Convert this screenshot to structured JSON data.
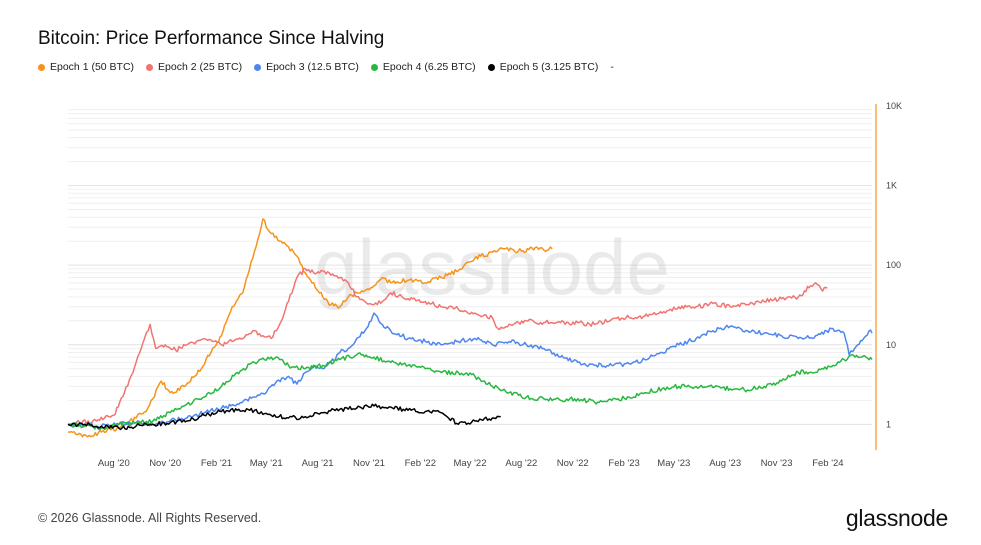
{
  "title": "Bitcoin: Price Performance Since Halving",
  "legend": [
    {
      "label": "Epoch 1 (50 BTC)",
      "color": "#f7931a"
    },
    {
      "label": "Epoch 2 (25 BTC)",
      "color": "#f07472"
    },
    {
      "label": "Epoch 3 (12.5 BTC)",
      "color": "#4e86f0"
    },
    {
      "label": "Epoch 4 (6.25 BTC)",
      "color": "#27b840"
    },
    {
      "label": "Epoch 5 (3.125 BTC)",
      "color": "#000000"
    },
    {
      "label": "-",
      "color": ""
    }
  ],
  "footer": "© 2026 Glassnode. All Rights Reserved.",
  "brand": "glassnode",
  "watermark": "glassnode",
  "chart_data": {
    "type": "line",
    "title": "Bitcoin: Price Performance Since Halving",
    "y_scale": "log",
    "ylim": [
      0.6,
      10000
    ],
    "y_ticks": [
      1,
      10,
      100,
      1000,
      10000
    ],
    "y_tick_labels": [
      "1",
      "10",
      "100",
      "1K",
      "10K"
    ],
    "x_ticks": [
      "Aug '20",
      "Nov '20",
      "Feb '21",
      "May '21",
      "Aug '21",
      "Nov '21",
      "Feb '22",
      "May '22",
      "Aug '22",
      "Nov '22",
      "Feb '23",
      "May '23",
      "Aug '23",
      "Nov '23",
      "Feb '24"
    ],
    "xlim": [
      "2020-05-11",
      "2024-04-20"
    ],
    "grid": true,
    "legend_position": "top-left",
    "series": [
      {
        "name": "Epoch 1 (50 BTC)",
        "color": "#f7931a",
        "points": [
          [
            "2020-05-11",
            0.8
          ],
          [
            "2020-05-25",
            0.75
          ],
          [
            "2020-06-15",
            0.7
          ],
          [
            "2020-07-10",
            0.8
          ],
          [
            "2020-08-10",
            0.9
          ],
          [
            "2020-09-10",
            1.2
          ],
          [
            "2020-10-01",
            1.6
          ],
          [
            "2020-10-25",
            3.5
          ],
          [
            "2020-11-10",
            2.5
          ],
          [
            "2020-12-05",
            3.0
          ],
          [
            "2021-01-05",
            5.0
          ],
          [
            "2021-01-25",
            9.0
          ],
          [
            "2021-02-10",
            13
          ],
          [
            "2021-03-01",
            30
          ],
          [
            "2021-03-20",
            45
          ],
          [
            "2021-04-10",
            150
          ],
          [
            "2021-04-25",
            380
          ],
          [
            "2021-05-10",
            250
          ],
          [
            "2021-05-25",
            200
          ],
          [
            "2021-06-10",
            170
          ],
          [
            "2021-06-25",
            130
          ],
          [
            "2021-07-10",
            80
          ],
          [
            "2021-07-25",
            60
          ],
          [
            "2021-08-10",
            40
          ],
          [
            "2021-08-25",
            32
          ],
          [
            "2021-09-10",
            30
          ],
          [
            "2021-09-25",
            40
          ],
          [
            "2021-10-10",
            45
          ],
          [
            "2021-10-25",
            48
          ],
          [
            "2021-11-10",
            55
          ],
          [
            "2021-11-25",
            70
          ],
          [
            "2021-12-10",
            60
          ],
          [
            "2022-01-10",
            65
          ],
          [
            "2022-02-10",
            60
          ],
          [
            "2022-03-10",
            70
          ],
          [
            "2022-04-10",
            85
          ],
          [
            "2022-05-01",
            110
          ],
          [
            "2022-05-20",
            130
          ],
          [
            "2022-06-10",
            145
          ],
          [
            "2022-07-01",
            160
          ],
          [
            "2022-08-01",
            150
          ],
          [
            "2022-08-20",
            165
          ],
          [
            "2022-09-10",
            155
          ],
          [
            "2022-09-25",
            160
          ]
        ]
      },
      {
        "name": "Epoch 2 (25 BTC)",
        "color": "#f07472",
        "points": [
          [
            "2020-05-11",
            1.0
          ],
          [
            "2020-06-01",
            1.05
          ],
          [
            "2020-07-01",
            1.1
          ],
          [
            "2020-08-01",
            1.3
          ],
          [
            "2020-08-20",
            2.5
          ],
          [
            "2020-09-10",
            6.0
          ],
          [
            "2020-09-25",
            12
          ],
          [
            "2020-10-05",
            18
          ],
          [
            "2020-10-15",
            9
          ],
          [
            "2020-11-01",
            10
          ],
          [
            "2020-11-20",
            8.5
          ],
          [
            "2020-12-10",
            10
          ],
          [
            "2021-01-10",
            12
          ],
          [
            "2021-01-25",
            11
          ],
          [
            "2021-02-10",
            10
          ],
          [
            "2021-03-01",
            11
          ],
          [
            "2021-03-20",
            12
          ],
          [
            "2021-04-10",
            15
          ],
          [
            "2021-04-25",
            13
          ],
          [
            "2021-05-10",
            12
          ],
          [
            "2021-05-25",
            18
          ],
          [
            "2021-06-10",
            35
          ],
          [
            "2021-06-25",
            70
          ],
          [
            "2021-07-10",
            90
          ],
          [
            "2021-07-25",
            80
          ],
          [
            "2021-08-10",
            85
          ],
          [
            "2021-08-25",
            75
          ],
          [
            "2021-09-10",
            70
          ],
          [
            "2021-09-25",
            60
          ],
          [
            "2021-10-10",
            40
          ],
          [
            "2021-10-25",
            35
          ],
          [
            "2021-11-10",
            32
          ],
          [
            "2021-11-25",
            35
          ],
          [
            "2021-12-10",
            45
          ],
          [
            "2022-01-10",
            38
          ],
          [
            "2022-02-10",
            35
          ],
          [
            "2022-03-10",
            30
          ],
          [
            "2022-04-10",
            28
          ],
          [
            "2022-05-10",
            25
          ],
          [
            "2022-06-10",
            22
          ],
          [
            "2022-06-20",
            16
          ],
          [
            "2022-07-10",
            18
          ],
          [
            "2022-08-10",
            20
          ],
          [
            "2022-09-10",
            19
          ],
          [
            "2022-10-10",
            19
          ],
          [
            "2022-11-10",
            19
          ],
          [
            "2022-12-10",
            18
          ],
          [
            "2023-01-10",
            21
          ],
          [
            "2023-02-10",
            22
          ],
          [
            "2023-03-10",
            23
          ],
          [
            "2023-04-10",
            25
          ],
          [
            "2023-05-10",
            30
          ],
          [
            "2023-06-10",
            30
          ],
          [
            "2023-07-10",
            33
          ],
          [
            "2023-08-10",
            30
          ],
          [
            "2023-09-10",
            32
          ],
          [
            "2023-10-10",
            35
          ],
          [
            "2023-11-10",
            38
          ],
          [
            "2023-12-10",
            40
          ],
          [
            "2024-01-01",
            55
          ],
          [
            "2024-01-10",
            60
          ],
          [
            "2024-01-20",
            50
          ],
          [
            "2024-01-31",
            52
          ]
        ]
      },
      {
        "name": "Epoch 3 (12.5 BTC)",
        "color": "#4e86f0",
        "points": [
          [
            "2020-05-11",
            1.0
          ],
          [
            "2020-06-10",
            1.0
          ],
          [
            "2020-07-10",
            0.95
          ],
          [
            "2020-08-10",
            1.0
          ],
          [
            "2020-09-10",
            1.05
          ],
          [
            "2020-10-10",
            1.0
          ],
          [
            "2020-11-10",
            1.1
          ],
          [
            "2020-12-10",
            1.2
          ],
          [
            "2021-01-10",
            1.4
          ],
          [
            "2021-02-10",
            1.6
          ],
          [
            "2021-03-10",
            1.8
          ],
          [
            "2021-04-10",
            2.2
          ],
          [
            "2021-05-01",
            2.5
          ],
          [
            "2021-05-20",
            3.5
          ],
          [
            "2021-06-10",
            4.0
          ],
          [
            "2021-06-25",
            3.2
          ],
          [
            "2021-07-10",
            4.5
          ],
          [
            "2021-07-25",
            5.5
          ],
          [
            "2021-08-10",
            5.0
          ],
          [
            "2021-08-25",
            6.0
          ],
          [
            "2021-09-10",
            8.0
          ],
          [
            "2021-09-25",
            9.0
          ],
          [
            "2021-10-10",
            12
          ],
          [
            "2021-10-25",
            15
          ],
          [
            "2021-11-10",
            25
          ],
          [
            "2021-11-25",
            18
          ],
          [
            "2021-12-10",
            15
          ],
          [
            "2022-01-10",
            12
          ],
          [
            "2022-02-10",
            11
          ],
          [
            "2022-03-10",
            10
          ],
          [
            "2022-04-10",
            11
          ],
          [
            "2022-05-10",
            12
          ],
          [
            "2022-06-10",
            10
          ],
          [
            "2022-07-10",
            11
          ],
          [
            "2022-08-10",
            10
          ],
          [
            "2022-09-10",
            9
          ],
          [
            "2022-10-10",
            7
          ],
          [
            "2022-11-10",
            6
          ],
          [
            "2022-12-10",
            5.5
          ],
          [
            "2023-01-10",
            5.5
          ],
          [
            "2023-02-10",
            5.8
          ],
          [
            "2023-03-10",
            6.5
          ],
          [
            "2023-04-10",
            8
          ],
          [
            "2023-05-10",
            10
          ],
          [
            "2023-06-10",
            12
          ],
          [
            "2023-07-10",
            15
          ],
          [
            "2023-08-10",
            17
          ],
          [
            "2023-09-10",
            15
          ],
          [
            "2023-10-10",
            14
          ],
          [
            "2023-11-10",
            13
          ],
          [
            "2023-12-10",
            12
          ],
          [
            "2024-01-10",
            13
          ],
          [
            "2024-02-10",
            16
          ],
          [
            "2024-03-01",
            14
          ],
          [
            "2024-03-10",
            7.5
          ],
          [
            "2024-03-20",
            9
          ],
          [
            "2024-04-05",
            12
          ],
          [
            "2024-04-15",
            15
          ],
          [
            "2024-04-20",
            14
          ]
        ]
      },
      {
        "name": "Epoch 4 (6.25 BTC)",
        "color": "#27b840",
        "points": [
          [
            "2020-05-11",
            1.0
          ],
          [
            "2020-06-10",
            0.95
          ],
          [
            "2020-07-10",
            0.9
          ],
          [
            "2020-08-10",
            1.0
          ],
          [
            "2020-09-10",
            1.05
          ],
          [
            "2020-10-10",
            1.1
          ],
          [
            "2020-11-10",
            1.4
          ],
          [
            "2020-12-10",
            1.8
          ],
          [
            "2021-01-10",
            2.2
          ],
          [
            "2021-02-10",
            3.0
          ],
          [
            "2021-03-10",
            4.5
          ],
          [
            "2021-04-10",
            6.0
          ],
          [
            "2021-05-10",
            7.0
          ],
          [
            "2021-05-25",
            6.5
          ],
          [
            "2021-06-10",
            5.5
          ],
          [
            "2021-07-10",
            5.0
          ],
          [
            "2021-08-10",
            5.5
          ],
          [
            "2021-09-10",
            6.5
          ],
          [
            "2021-10-10",
            7.5
          ],
          [
            "2021-11-10",
            7.0
          ],
          [
            "2021-12-10",
            6.0
          ],
          [
            "2022-01-10",
            5.5
          ],
          [
            "2022-02-10",
            5.0
          ],
          [
            "2022-03-10",
            4.5
          ],
          [
            "2022-04-10",
            4.5
          ],
          [
            "2022-05-10",
            4.0
          ],
          [
            "2022-06-10",
            3.0
          ],
          [
            "2022-07-10",
            2.5
          ],
          [
            "2022-08-10",
            2.2
          ],
          [
            "2022-09-10",
            2.1
          ],
          [
            "2022-10-10",
            2.0
          ],
          [
            "2022-11-10",
            2.1
          ],
          [
            "2022-12-10",
            1.9
          ],
          [
            "2023-01-10",
            2.0
          ],
          [
            "2023-02-10",
            2.2
          ],
          [
            "2023-03-10",
            2.5
          ],
          [
            "2023-04-10",
            2.8
          ],
          [
            "2023-05-10",
            3.0
          ],
          [
            "2023-06-10",
            3.0
          ],
          [
            "2023-07-10",
            2.9
          ],
          [
            "2023-08-10",
            2.8
          ],
          [
            "2023-09-10",
            2.7
          ],
          [
            "2023-10-10",
            3.0
          ],
          [
            "2023-11-10",
            3.5
          ],
          [
            "2023-12-10",
            4.5
          ],
          [
            "2024-01-10",
            4.5
          ],
          [
            "2024-02-10",
            5.5
          ],
          [
            "2024-03-01",
            6.5
          ],
          [
            "2024-03-15",
            7.5
          ],
          [
            "2024-04-01",
            7.0
          ],
          [
            "2024-04-20",
            6.5
          ]
        ]
      },
      {
        "name": "Epoch 5 (3.125 BTC)",
        "color": "#000000",
        "points": [
          [
            "2020-05-11",
            1.0
          ],
          [
            "2020-06-10",
            1.0
          ],
          [
            "2020-07-10",
            0.95
          ],
          [
            "2020-08-10",
            0.9
          ],
          [
            "2020-09-10",
            0.95
          ],
          [
            "2020-10-10",
            1.0
          ],
          [
            "2020-11-10",
            1.05
          ],
          [
            "2020-12-10",
            1.1
          ],
          [
            "2021-01-10",
            1.3
          ],
          [
            "2021-02-10",
            1.45
          ],
          [
            "2021-03-10",
            1.5
          ],
          [
            "2021-04-10",
            1.5
          ],
          [
            "2021-05-10",
            1.3
          ],
          [
            "2021-06-10",
            1.2
          ],
          [
            "2021-07-10",
            1.25
          ],
          [
            "2021-08-10",
            1.4
          ],
          [
            "2021-09-10",
            1.55
          ],
          [
            "2021-10-10",
            1.6
          ],
          [
            "2021-11-10",
            1.7
          ],
          [
            "2021-12-10",
            1.65
          ],
          [
            "2022-01-10",
            1.5
          ],
          [
            "2022-02-10",
            1.45
          ],
          [
            "2022-03-10",
            1.4
          ],
          [
            "2022-04-10",
            1.0
          ],
          [
            "2022-05-10",
            1.1
          ],
          [
            "2022-06-10",
            1.2
          ],
          [
            "2022-06-25",
            1.25
          ]
        ]
      }
    ]
  }
}
